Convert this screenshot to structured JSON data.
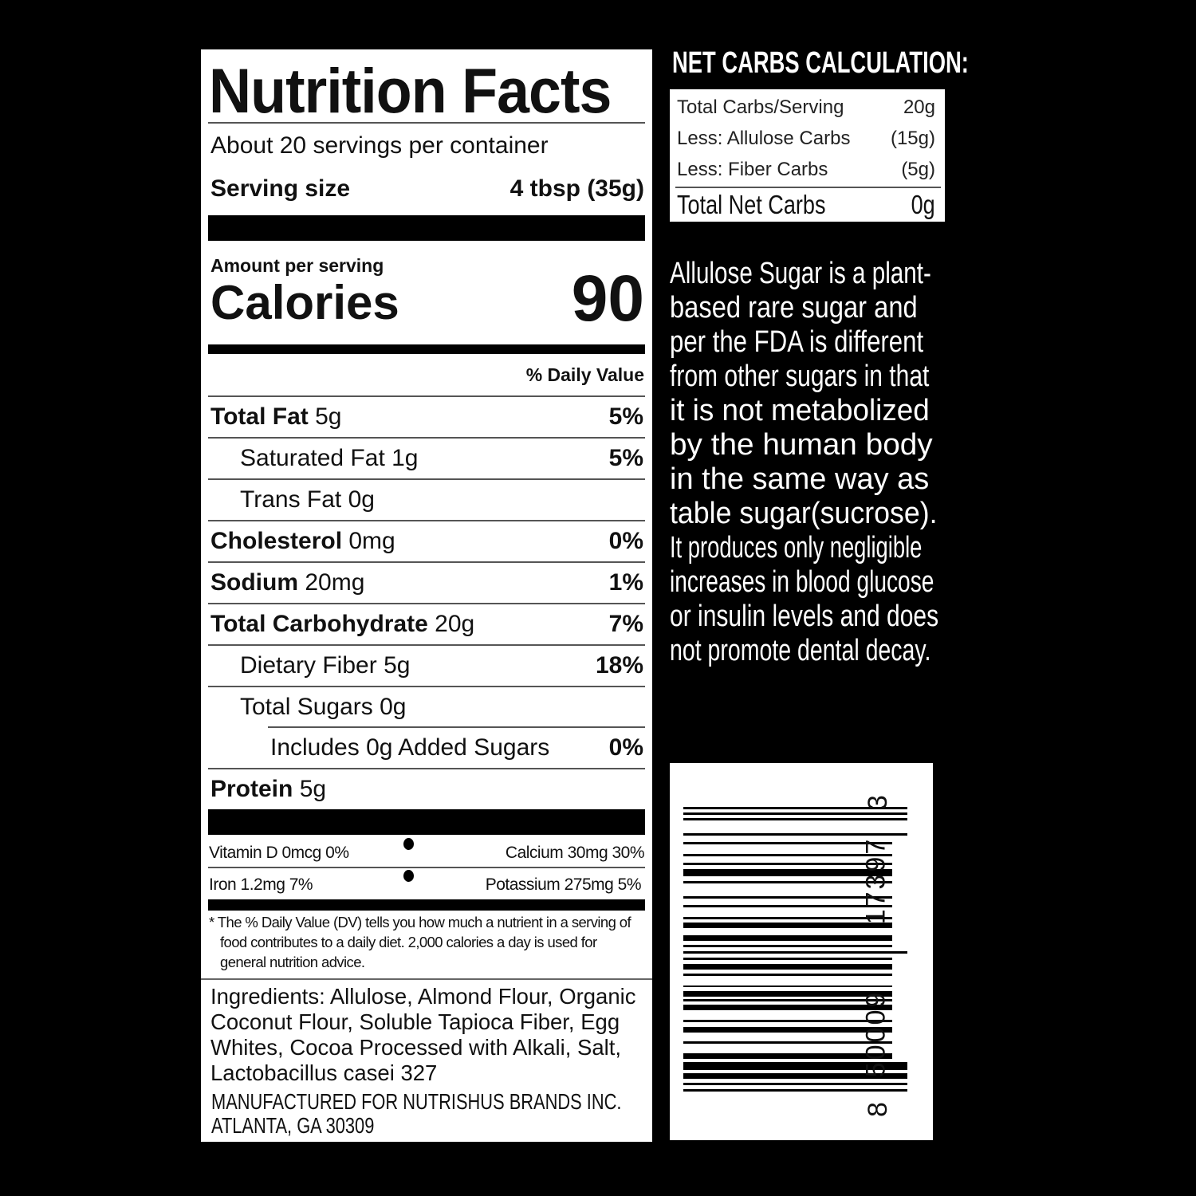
{
  "label": {
    "title": "Nutrition Facts",
    "servings": "About 20 servings per container",
    "serving_size_label": "Serving size",
    "serving_size_value": "4 tbsp (35g)",
    "amount_per_serving": "Amount per serving",
    "calories_label": "Calories",
    "calories_value": "90",
    "daily_value_header": "% Daily Value",
    "nutrients": [
      {
        "name": "Total Fat",
        "amount": "5g",
        "dv": "5%"
      },
      {
        "name": "Saturated Fat",
        "amount": "1g",
        "dv": "5%"
      },
      {
        "name": "Trans Fat",
        "amount": "0g",
        "dv": ""
      },
      {
        "name": "Cholesterol",
        "amount": "0mg",
        "dv": "0%"
      },
      {
        "name": "Sodium",
        "amount": "20mg",
        "dv": "1%"
      },
      {
        "name": "Total Carbohydrate",
        "amount": "20g",
        "dv": "7%"
      },
      {
        "name": "Dietary Fiber",
        "amount": "5g",
        "dv": "18%"
      },
      {
        "name": "Total Sugars",
        "amount": "0g",
        "dv": ""
      },
      {
        "name": "Includes 0g Added Sugars",
        "amount": "",
        "dv": "0%"
      },
      {
        "name": "Protein",
        "amount": "5g",
        "dv": ""
      }
    ],
    "micros": {
      "vitamin_d": "Vitamin D 0mcg 0%",
      "calcium": "Calcium 30mg 30%",
      "iron": "Iron 1.2mg 7%",
      "potassium": "Potassium 275mg 5%"
    },
    "footnote": [
      "* The % Daily Value (DV) tells you how much a nutrient in a serving of",
      "food contributes to a daily diet. 2,000 calories a day is used for",
      "general nutrition advice."
    ],
    "ingredients": [
      "Ingredients: Allulose, Almond Flour, Organic",
      "Coconut Flour, Soluble Tapioca Fiber, Egg",
      "Whites, Cocoa Processed with Alkali, Salt,",
      "Lactobacillus casei 327"
    ],
    "manufacturer": [
      "MANUFACTURED FOR NUTRISHUS BRANDS INC.",
      "ATLANTA, GA 30309"
    ]
  },
  "net_carbs": {
    "title": "NET CARBS CALCULATION:",
    "rows": [
      {
        "label": "Total Carbs/Serving",
        "value": "20g"
      },
      {
        "label": "Less: Allulose Carbs",
        "value": "(15g)"
      },
      {
        "label": "Less: Fiber Carbs",
        "value": "(5g)"
      }
    ],
    "total_label": "Total Net Carbs",
    "total_value": "0g"
  },
  "description": [
    "Allulose Sugar is a plant-",
    "based rare sugar and",
    "per the FDA is different",
    "from other sugars in that",
    "it is not metabolized",
    "by the human body",
    "in the same way as",
    "table sugar(sucrose).",
    "It produces only negligible",
    "increases in blood glucose",
    "or insulin levels and does",
    "not promote dental decay."
  ],
  "barcode": {
    "digits": [
      "8",
      "50009",
      "17397",
      "3"
    ]
  }
}
